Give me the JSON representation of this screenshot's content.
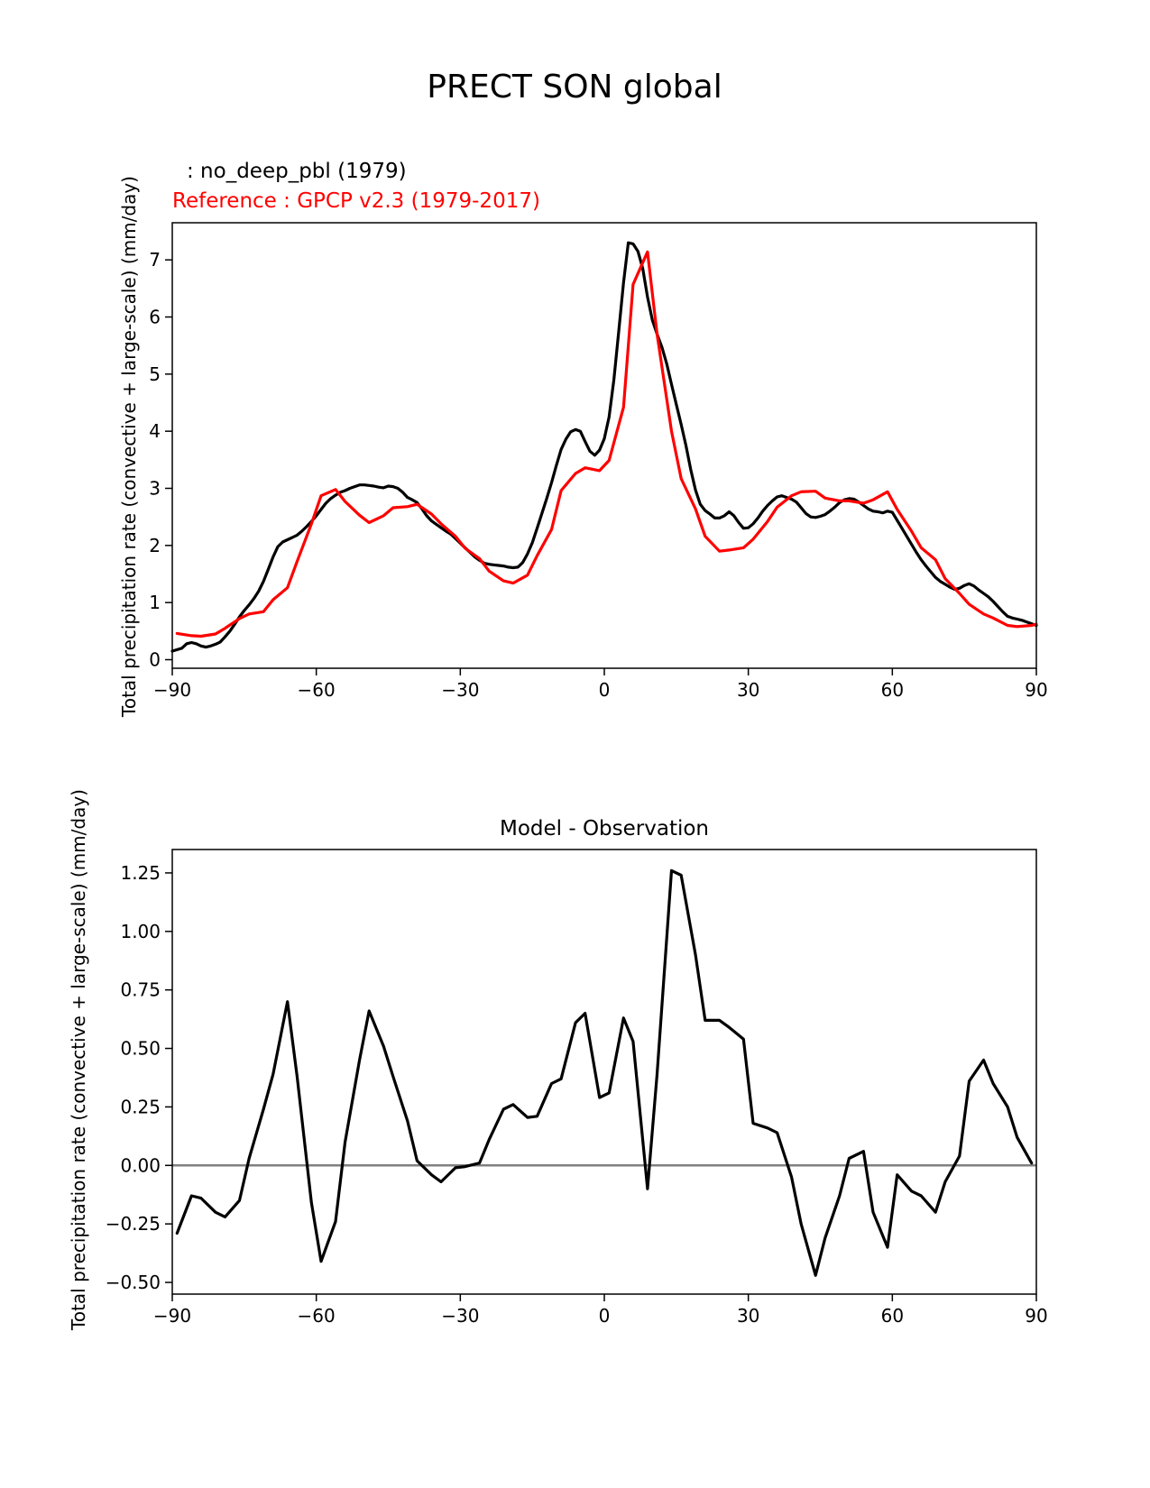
{
  "figure": {
    "title": "PRECT SON global"
  },
  "chart_data": [
    {
      "type": "line",
      "model_label": ": no_deep_pbl (1979)",
      "reference_label": "Reference : GPCP v2.3 (1979-2017)",
      "ylabel": "Total precipitation rate (convective + large-scale) (mm/day)",
      "xlabel": "",
      "xlim": [
        -90,
        90
      ],
      "ylim": [
        -0.15,
        7.65
      ],
      "xticks": [
        "−90",
        "−60",
        "−30",
        "0",
        "30",
        "60",
        "90"
      ],
      "xtick_values": [
        -90,
        -60,
        -30,
        0,
        30,
        60,
        90
      ],
      "yticks": [
        "0",
        "1",
        "2",
        "3",
        "4",
        "5",
        "6",
        "7"
      ],
      "ytick_values": [
        0,
        1,
        2,
        3,
        4,
        5,
        6,
        7
      ],
      "series": [
        {
          "name": "no_deep_pbl (1979)",
          "color": "#000000",
          "x": [
            -90,
            -88,
            -87,
            -86,
            -85,
            -84,
            -83,
            -82,
            -81,
            -80,
            -79,
            -78,
            -77,
            -76,
            -75,
            -74,
            -73,
            -72,
            -71,
            -70,
            -69,
            -68,
            -67,
            -66,
            -65,
            -64,
            -63,
            -62,
            -61,
            -60,
            -59,
            -58,
            -57,
            -56,
            -55,
            -54,
            -53,
            -52,
            -51,
            -50,
            -49,
            -48,
            -47,
            -46,
            -45,
            -44,
            -43,
            -42,
            -41,
            -40,
            -39,
            -38,
            -37,
            -36,
            -35,
            -34,
            -33,
            -32,
            -31,
            -30,
            -29,
            -28,
            -27,
            -26,
            -25,
            -24,
            -23,
            -22,
            -21,
            -20,
            -19,
            -18,
            -17,
            -16,
            -15,
            -14,
            -13,
            -12,
            -11,
            -10,
            -9,
            -8,
            -7,
            -6,
            -5,
            -4,
            -3,
            -2,
            -1,
            0,
            1,
            2,
            3,
            4,
            5,
            6,
            7,
            8,
            9,
            10,
            11,
            12,
            13,
            14,
            15,
            16,
            17,
            18,
            19,
            20,
            21,
            22,
            23,
            24,
            25,
            26,
            27,
            28,
            29,
            30,
            31,
            32,
            33,
            34,
            35,
            36,
            37,
            38,
            39,
            40,
            41,
            42,
            43,
            44,
            45,
            46,
            47,
            48,
            49,
            50,
            51,
            52,
            53,
            54,
            55,
            56,
            57,
            58,
            59,
            60,
            61,
            62,
            63,
            64,
            65,
            66,
            67,
            68,
            69,
            70,
            71,
            72,
            73,
            74,
            75,
            76,
            77,
            78,
            79,
            80,
            81,
            82,
            83,
            84,
            85,
            86,
            87,
            88,
            89,
            90
          ],
          "y": [
            0.15,
            0.2,
            0.28,
            0.3,
            0.28,
            0.24,
            0.22,
            0.24,
            0.27,
            0.31,
            0.4,
            0.5,
            0.62,
            0.75,
            0.86,
            0.96,
            1.07,
            1.2,
            1.37,
            1.58,
            1.8,
            1.98,
            2.06,
            2.1,
            2.14,
            2.18,
            2.25,
            2.33,
            2.42,
            2.52,
            2.63,
            2.74,
            2.82,
            2.88,
            2.93,
            2.96,
            3.0,
            3.03,
            3.06,
            3.06,
            3.05,
            3.04,
            3.02,
            3.01,
            3.04,
            3.03,
            3.0,
            2.93,
            2.84,
            2.8,
            2.75,
            2.64,
            2.52,
            2.43,
            2.37,
            2.31,
            2.25,
            2.2,
            2.12,
            2.04,
            1.96,
            1.88,
            1.8,
            1.74,
            1.69,
            1.67,
            1.66,
            1.65,
            1.64,
            1.62,
            1.61,
            1.62,
            1.7,
            1.85,
            2.05,
            2.3,
            2.56,
            2.82,
            3.1,
            3.4,
            3.68,
            3.86,
            3.99,
            4.03,
            4.0,
            3.82,
            3.65,
            3.58,
            3.67,
            3.87,
            4.25,
            4.9,
            5.75,
            6.6,
            7.3,
            7.28,
            7.15,
            6.85,
            6.35,
            5.95,
            5.7,
            5.47,
            5.18,
            4.82,
            4.47,
            4.12,
            3.75,
            3.33,
            2.97,
            2.72,
            2.61,
            2.55,
            2.48,
            2.48,
            2.52,
            2.59,
            2.52,
            2.4,
            2.3,
            2.31,
            2.38,
            2.48,
            2.6,
            2.7,
            2.78,
            2.85,
            2.87,
            2.84,
            2.81,
            2.76,
            2.66,
            2.56,
            2.5,
            2.49,
            2.51,
            2.54,
            2.6,
            2.67,
            2.75,
            2.8,
            2.82,
            2.81,
            2.76,
            2.7,
            2.64,
            2.6,
            2.59,
            2.57,
            2.6,
            2.58,
            2.44,
            2.3,
            2.16,
            2.02,
            1.88,
            1.75,
            1.64,
            1.54,
            1.44,
            1.37,
            1.32,
            1.27,
            1.23,
            1.25,
            1.3,
            1.33,
            1.29,
            1.22,
            1.16,
            1.1,
            1.02,
            0.93,
            0.84,
            0.76,
            0.73,
            0.71,
            0.69,
            0.66,
            0.63,
            0.6
          ]
        },
        {
          "name": "GPCP v2.3 (1979-2017)",
          "color": "#ff0000",
          "x": [
            -89,
            -86,
            -84,
            -81,
            -79,
            -76,
            -74,
            -71,
            -69,
            -66,
            -64,
            -61,
            -59,
            -56,
            -54,
            -51,
            -49,
            -46,
            -44,
            -41,
            -39,
            -36,
            -34,
            -31,
            -29,
            -26,
            -24,
            -21,
            -19,
            -16,
            -14,
            -11,
            -9,
            -6,
            -4,
            -1,
            1,
            4,
            6,
            9,
            11,
            14,
            16,
            19,
            21,
            24,
            26,
            29,
            31,
            34,
            36,
            39,
            41,
            44,
            46,
            49,
            51,
            54,
            56,
            59,
            61,
            64,
            66,
            69,
            71,
            74,
            76,
            79,
            81,
            84,
            86,
            89,
            90
          ],
          "y": [
            0.46,
            0.42,
            0.41,
            0.45,
            0.55,
            0.72,
            0.8,
            0.84,
            1.05,
            1.26,
            1.72,
            2.38,
            2.87,
            2.98,
            2.77,
            2.53,
            2.4,
            2.52,
            2.66,
            2.68,
            2.72,
            2.55,
            2.38,
            2.16,
            1.95,
            1.77,
            1.55,
            1.38,
            1.34,
            1.48,
            1.82,
            2.28,
            2.96,
            3.26,
            3.36,
            3.31,
            3.49,
            4.42,
            6.57,
            7.14,
            5.7,
            4.0,
            3.17,
            2.64,
            2.16,
            1.9,
            1.92,
            1.96,
            2.11,
            2.42,
            2.67,
            2.87,
            2.94,
            2.95,
            2.83,
            2.78,
            2.78,
            2.74,
            2.8,
            2.94,
            2.63,
            2.25,
            1.96,
            1.75,
            1.42,
            1.16,
            0.97,
            0.8,
            0.73,
            0.6,
            0.58,
            0.6,
            0.62
          ]
        }
      ]
    },
    {
      "type": "line",
      "title": "Model - Observation",
      "ylabel": "Total precipitation rate (convective + large-scale) (mm/day)",
      "xlabel": "",
      "xlim": [
        -90,
        90
      ],
      "ylim": [
        -0.55,
        1.35
      ],
      "xticks": [
        "−90",
        "−60",
        "−30",
        "0",
        "30",
        "60",
        "90"
      ],
      "xtick_values": [
        -90,
        -60,
        -30,
        0,
        30,
        60,
        90
      ],
      "yticks": [
        "−0.50",
        "−0.25",
        "0.00",
        "0.25",
        "0.50",
        "0.75",
        "1.00",
        "1.25"
      ],
      "ytick_values": [
        -0.5,
        -0.25,
        0,
        0.25,
        0.5,
        0.75,
        1.0,
        1.25
      ],
      "zero_line": 0,
      "series": [
        {
          "name": "Model - Observation",
          "color": "#000000",
          "x": [
            -89,
            -86,
            -84,
            -81,
            -79,
            -76,
            -74,
            -71,
            -69,
            -66,
            -64,
            -61,
            -59,
            -56,
            -54,
            -51,
            -49,
            -46,
            -44,
            -41,
            -39,
            -36,
            -34,
            -31,
            -29,
            -26,
            -24,
            -21,
            -19,
            -16,
            -14,
            -11,
            -9,
            -6,
            -4,
            -1,
            1,
            4,
            6,
            9,
            11,
            14,
            16,
            19,
            21,
            24,
            26,
            29,
            31,
            34,
            36,
            39,
            41,
            44,
            46,
            49,
            51,
            54,
            56,
            59,
            61,
            64,
            66,
            69,
            71,
            74,
            76,
            79,
            81,
            84,
            86,
            89
          ],
          "y": [
            -0.29,
            -0.13,
            -0.14,
            -0.2,
            -0.22,
            -0.15,
            0.03,
            0.24,
            0.39,
            0.7,
            0.38,
            -0.16,
            -0.41,
            -0.24,
            0.1,
            0.45,
            0.66,
            0.51,
            0.38,
            0.19,
            0.02,
            -0.04,
            -0.07,
            -0.01,
            -0.005,
            0.01,
            0.11,
            0.24,
            0.26,
            0.205,
            0.21,
            0.35,
            0.37,
            0.61,
            0.65,
            0.29,
            0.31,
            0.63,
            0.53,
            -0.1,
            0.39,
            1.26,
            1.24,
            0.9,
            0.62,
            0.62,
            0.59,
            0.54,
            0.18,
            0.16,
            0.14,
            -0.05,
            -0.25,
            -0.47,
            -0.31,
            -0.13,
            0.03,
            0.06,
            -0.2,
            -0.35,
            -0.04,
            -0.11,
            -0.13,
            -0.2,
            -0.07,
            0.04,
            0.36,
            0.45,
            0.35,
            0.25,
            0.12,
            0.01
          ]
        }
      ]
    }
  ]
}
